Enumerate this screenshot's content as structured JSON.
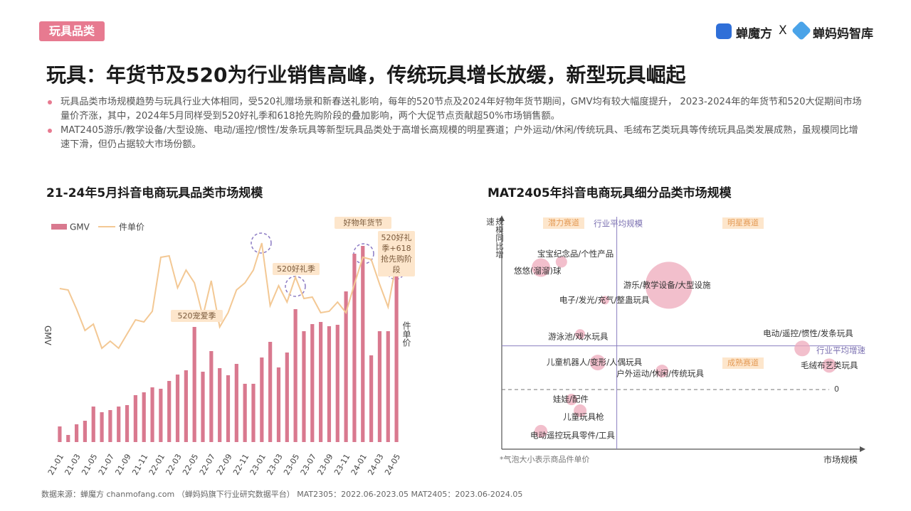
{
  "header": {
    "tag": "玩具品类",
    "logo_left": "蝉魔方",
    "logo_sep": "X",
    "logo_right": "蝉妈妈智库"
  },
  "title": "玩具：年货节及520为行业销售高峰，传统玩具增长放缓，新型玩具崛起",
  "bullets": [
    "玩具品类市场规模趋势与玩具行业大体相同，受520礼赠场景和新春送礼影响，每年的520节点及2024年好物年货节期间，GMV均有较大幅度提升， 2023-2024年的年货节和520大促期间市场量价齐涨，其中，2024年5月同样受到520好礼季和618抢先购阶段的叠加影响，两个大促节点贡献超50%市场销售额。",
    "MAT2405游乐/教学设备/大型设施、电动/遥控/惯性/发条玩具等新型玩具品类处于高增长高规模的明星赛道；户外运动/休闲/传统玩具、毛绒布艺类玩具等传统玩具品类发展成熟，虽规模同比增速下滑，但仍占据较大市场份额。"
  ],
  "chart_data": [
    {
      "type": "bar_line",
      "title": "21-24年5月抖音电商玩具品类市场规模",
      "ylabel": "GMV",
      "y2label": "件单价",
      "categories": [
        "21-01",
        null,
        "21-03",
        null,
        "21-05",
        null,
        "21-07",
        null,
        "21-09",
        null,
        "21-11",
        null,
        "22-01",
        null,
        "22-03",
        null,
        "22-05",
        null,
        "22-07",
        null,
        "22-09",
        null,
        "22-11",
        null,
        "23-01",
        null,
        "23-03",
        null,
        "23-05",
        null,
        "23-07",
        null,
        "23-09",
        null,
        "23-11",
        null,
        "24-01",
        null,
        "24-03",
        null,
        "24-05"
      ],
      "series": [
        {
          "name": "GMV",
          "color": "#d9798f",
          "values": [
            22,
            10,
            25,
            30,
            50,
            42,
            45,
            50,
            52,
            66,
            70,
            77,
            75,
            86,
            95,
            101,
            162,
            99,
            128,
            104,
            94,
            110,
            82,
            82,
            119,
            141,
            105,
            126,
            187,
            156,
            166,
            169,
            163,
            165,
            212,
            265,
            276,
            122,
            156,
            156,
            247
          ]
        },
        {
          "name": "件单价",
          "color": "#f3c894",
          "axis": "y2",
          "values": [
            216,
            214,
            187,
            157,
            166,
            132,
            142,
            132,
            152,
            172,
            169,
            184,
            260,
            262,
            217,
            242,
            224,
            177,
            227,
            162,
            182,
            214,
            224,
            242,
            280,
            192,
            220,
            197,
            232,
            202,
            204,
            182,
            184,
            197,
            182,
            222,
            260,
            257,
            222,
            190,
            254
          ]
        }
      ],
      "ylim": [
        0,
        300
      ],
      "y2lim": [
        0,
        300
      ],
      "legend": "top-left",
      "annotations": [
        "520宠爱季",
        "520好礼季",
        "好物年货节",
        "520好礼季+618抢先购阶段"
      ]
    },
    {
      "type": "scatter",
      "title": "MAT2405年抖音电商玩具细分品类市场规模",
      "xlabel": "市场规模",
      "ylabel": "规模同比增速",
      "note": "*气泡大小表示商品件单价",
      "color": "#eeaabb",
      "xlim": [
        0,
        100
      ],
      "ylim": [
        -30,
        87
      ],
      "yticks": [
        0
      ],
      "reference_lines": [
        {
          "axis": "x",
          "value": 32,
          "label": "行业平均规模"
        },
        {
          "axis": "y",
          "value": 22,
          "label": "行业平均增速"
        }
      ],
      "quadrant_labels": [
        "潜力赛道",
        "明星赛道",
        "成熟赛道"
      ],
      "points": [
        {
          "label": "宝宝纪念品/个性产品",
          "x": 16.6,
          "y": 64.3,
          "size": 8
        },
        {
          "label": "悠悠(溜溜)球",
          "x": 10.9,
          "y": 61.4,
          "size": 13
        },
        {
          "label": "游乐/教学设备/大型设施",
          "x": 46.5,
          "y": 52.5,
          "size": 33
        },
        {
          "label": "电子/发光/充气/整蛊玩具",
          "x": 28.7,
          "y": 45,
          "size": 6
        },
        {
          "label": "游泳池/戏水玩具",
          "x": 21.8,
          "y": 27.9,
          "size": 7
        },
        {
          "label": "电动/遥控/惯性/发条玩具",
          "x": 83.6,
          "y": 20.7,
          "size": 11
        },
        {
          "label": "毛绒布艺类玩具",
          "x": 91.1,
          "y": 12.1,
          "size": 10
        },
        {
          "label": "儿童机器人/变形/人偶玩具",
          "x": 26.7,
          "y": 13.6,
          "size": 11
        },
        {
          "label": "户外运动/休闲/传统玩具",
          "x": 44.6,
          "y": 9.3,
          "size": 9
        },
        {
          "label": "娃娃/配件",
          "x": 19.4,
          "y": -5,
          "size": 8
        },
        {
          "label": "儿童玩具枪",
          "x": 21.8,
          "y": -10.7,
          "size": 9
        },
        {
          "label": "电动遥控玩具零件/工具",
          "x": 10.9,
          "y": -21,
          "size": 9
        }
      ]
    }
  ],
  "footer": "数据来源：蝉魔方 chanmofang.com （蝉妈妈旗下行业研究数据平台） MAT2305：2022.06-2023.05 MAT2405：2023.06-2024.05"
}
